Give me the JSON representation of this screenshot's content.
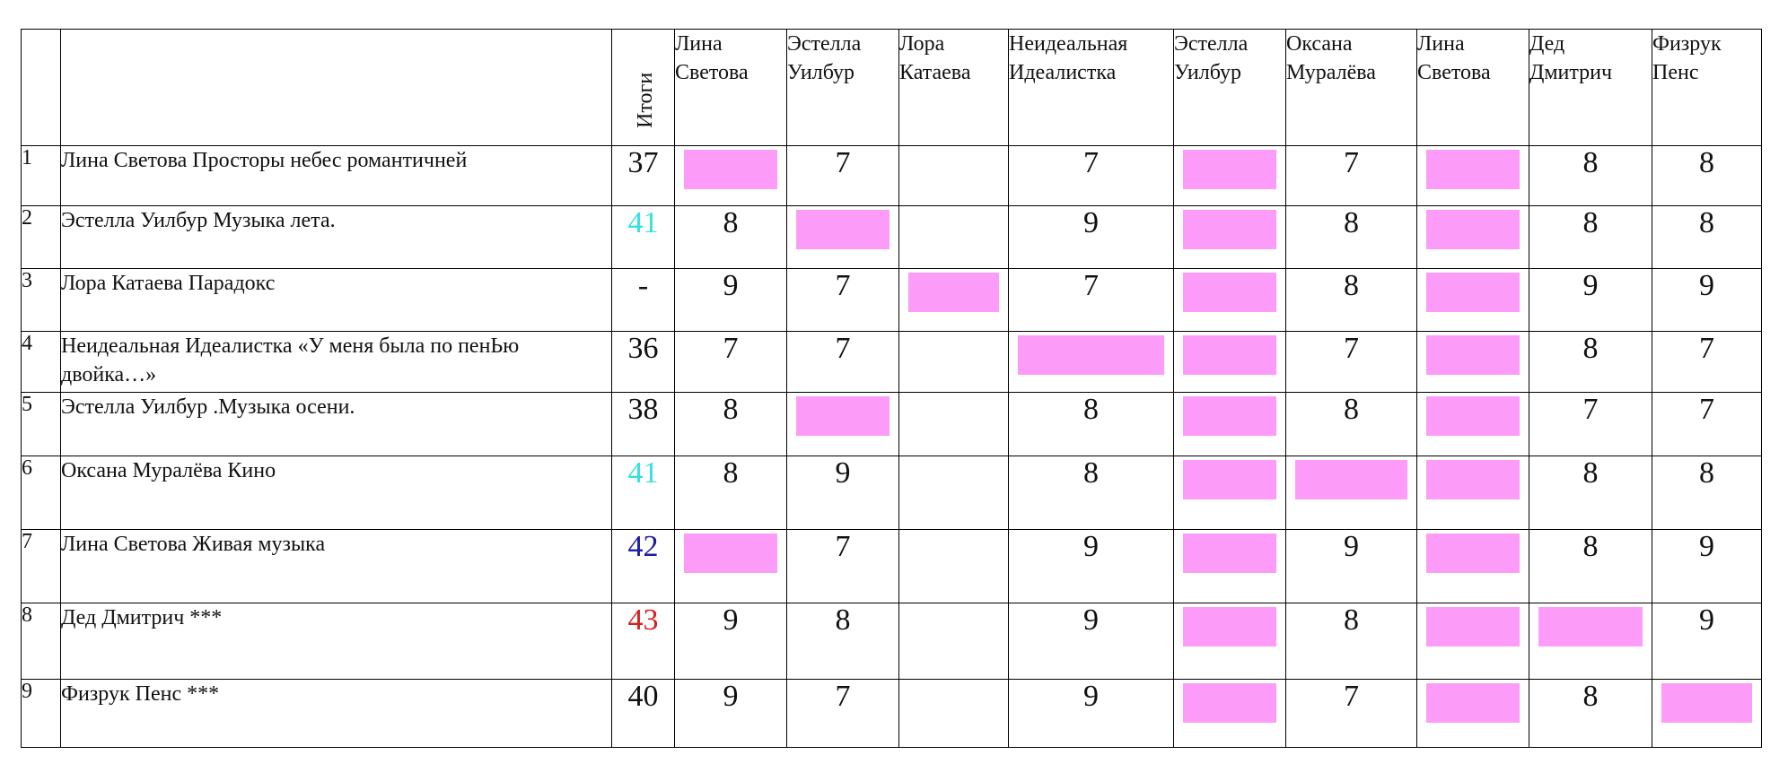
{
  "table": {
    "totals_header": "Итоги",
    "judges": [
      {
        "line1": "Лина",
        "line2": "Светова"
      },
      {
        "line1": "Эстелла",
        "line2": "Уилбур"
      },
      {
        "line1": "Лора",
        "line2": "Катаева"
      },
      {
        "line1": "Неидеальная",
        "line2": "Идеалистка"
      },
      {
        "line1": "Эстелла",
        "line2": "Уилбур"
      },
      {
        "line1": "Оксана",
        "line2": "Муралёва"
      },
      {
        "line1": "Лина",
        "line2": "Светова"
      },
      {
        "line1": "Дед",
        "line2": "Дмитрич"
      },
      {
        "line1": "Физрук",
        "line2": "Пенс"
      }
    ],
    "rows": [
      {
        "num": "1",
        "title": "Лина Светова Просторы небес романтичней",
        "total": "37",
        "total_color": "#111111",
        "scores": [
          "",
          "7",
          "",
          "7",
          "",
          "7",
          "",
          "8",
          "8"
        ],
        "pink": [
          true,
          false,
          false,
          false,
          true,
          false,
          true,
          false,
          false
        ]
      },
      {
        "num": "2",
        "title": "Эстелла Уилбур Музыка лета.",
        "total": "41",
        "total_color": "#33e0e0",
        "scores": [
          "8",
          "",
          "",
          "9",
          "",
          "8",
          "",
          "8",
          "8"
        ],
        "pink": [
          false,
          true,
          false,
          false,
          true,
          false,
          true,
          false,
          false
        ]
      },
      {
        "num": "3",
        "title": "Лора Катаева Парадокс",
        "total": "-",
        "total_color": "#111111",
        "scores": [
          "9",
          "7",
          "",
          "7",
          "",
          "8",
          "",
          "9",
          "9"
        ],
        "pink": [
          false,
          false,
          true,
          false,
          true,
          false,
          true,
          false,
          false
        ]
      },
      {
        "num": "4",
        "title": "Неидеальная Идеалистка «У меня была по пенЬю двойка…»",
        "total": "36",
        "total_color": "#111111",
        "scores": [
          "7",
          "7",
          "",
          "",
          "",
          "7",
          "",
          "8",
          "7"
        ],
        "pink": [
          false,
          false,
          false,
          true,
          true,
          false,
          true,
          false,
          false
        ]
      },
      {
        "num": "5",
        "title": "Эстелла Уилбур .Музыка осени.",
        "total": "38",
        "total_color": "#111111",
        "scores": [
          "8",
          "",
          "",
          "8",
          "",
          "8",
          "",
          "7",
          "7"
        ],
        "pink": [
          false,
          true,
          false,
          false,
          true,
          false,
          true,
          false,
          false
        ]
      },
      {
        "num": "6",
        "title": "Оксана Муралёва Кино",
        "total": "41",
        "total_color": "#33e0e0",
        "scores": [
          "8",
          "9",
          "",
          "8",
          "",
          "",
          "",
          "8",
          "8"
        ],
        "pink": [
          false,
          false,
          false,
          false,
          true,
          true,
          true,
          false,
          false
        ]
      },
      {
        "num": "7",
        "title": "Лина Светова Живая музыка",
        "total": "42",
        "total_color": "#1a1aa6",
        "scores": [
          "",
          "7",
          "",
          "9",
          "",
          "9",
          "",
          "8",
          "9"
        ],
        "pink": [
          true,
          false,
          false,
          false,
          true,
          false,
          true,
          false,
          false
        ]
      },
      {
        "num": "8",
        "title": "Дед Дмитрич ***",
        "total": "43",
        "total_color": "#d81e1e",
        "scores": [
          "9",
          "8",
          "",
          "9",
          "",
          "8",
          "",
          "",
          "9"
        ],
        "pink": [
          false,
          false,
          false,
          false,
          true,
          false,
          true,
          true,
          false
        ]
      },
      {
        "num": "9",
        "title": "Физрук Пенс ***",
        "total": "40",
        "total_color": "#111111",
        "scores": [
          "9",
          "7",
          "",
          "9",
          "",
          "7",
          "",
          "8",
          ""
        ],
        "pink": [
          false,
          false,
          false,
          false,
          true,
          false,
          true,
          false,
          true
        ]
      }
    ]
  }
}
